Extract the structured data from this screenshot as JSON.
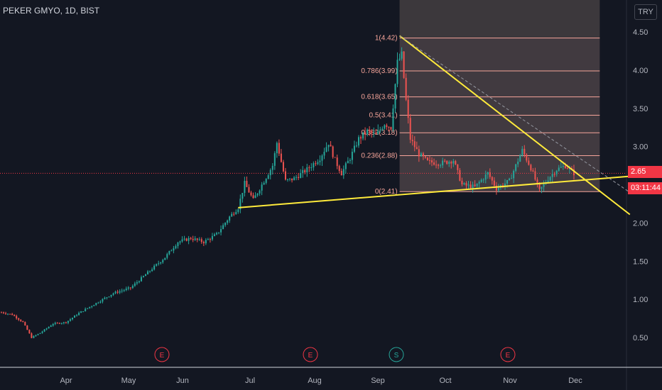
{
  "header": {
    "symbol_title": "PEKER GMYO, 1D, BIST",
    "currency": "TRY"
  },
  "price_badge": {
    "last_price": "2.65",
    "countdown": "03:11:44"
  },
  "colors": {
    "background": "#131722",
    "up_candle": "#26a69a",
    "down_candle": "#ef5350",
    "trendline": "#ffeb3b",
    "fib_line": "#f7a59a",
    "fib_box": "#4a4145",
    "axis_text": "#b2b5be",
    "event_marker": "#f23645",
    "split_marker": "#26a69a"
  },
  "chart_data": {
    "type": "candlestick",
    "y_axis": {
      "ticks": [
        "0.50",
        "1.00",
        "1.50",
        "2.00",
        "2.50",
        "3.00",
        "3.50",
        "4.00",
        "4.50"
      ],
      "range": [
        0.25,
        4.75
      ]
    },
    "x_axis": {
      "ticks": [
        "Apr",
        "May",
        "Jun",
        "Jul",
        "Aug",
        "Sep",
        "Oct",
        "Nov",
        "Dec"
      ]
    },
    "price_path": [
      {
        "day": 0,
        "price": 0.83
      },
      {
        "day": 5,
        "price": 0.8
      },
      {
        "day": 10,
        "price": 0.7
      },
      {
        "day": 14,
        "price": 0.5
      },
      {
        "day": 18,
        "price": 0.56
      },
      {
        "day": 24,
        "price": 0.68
      },
      {
        "day": 30,
        "price": 0.7
      },
      {
        "day": 36,
        "price": 0.82
      },
      {
        "day": 44,
        "price": 0.95
      },
      {
        "day": 52,
        "price": 1.08
      },
      {
        "day": 60,
        "price": 1.15
      },
      {
        "day": 68,
        "price": 1.35
      },
      {
        "day": 76,
        "price": 1.55
      },
      {
        "day": 82,
        "price": 1.75
      },
      {
        "day": 88,
        "price": 1.8
      },
      {
        "day": 94,
        "price": 1.75
      },
      {
        "day": 100,
        "price": 1.85
      },
      {
        "day": 106,
        "price": 2.08
      },
      {
        "day": 110,
        "price": 2.2
      },
      {
        "day": 113,
        "price": 2.52
      },
      {
        "day": 117,
        "price": 2.3
      },
      {
        "day": 122,
        "price": 2.55
      },
      {
        "day": 126,
        "price": 2.75
      },
      {
        "day": 128,
        "price": 3.05
      },
      {
        "day": 132,
        "price": 2.55
      },
      {
        "day": 136,
        "price": 2.58
      },
      {
        "day": 142,
        "price": 2.7
      },
      {
        "day": 148,
        "price": 2.85
      },
      {
        "day": 152,
        "price": 3.05
      },
      {
        "day": 155,
        "price": 2.82
      },
      {
        "day": 158,
        "price": 2.65
      },
      {
        "day": 162,
        "price": 2.85
      },
      {
        "day": 166,
        "price": 3.1
      },
      {
        "day": 170,
        "price": 3.2
      },
      {
        "day": 174,
        "price": 3.15
      },
      {
        "day": 178,
        "price": 3.3
      },
      {
        "day": 181,
        "price": 3.25
      },
      {
        "day": 184,
        "price": 4.1
      },
      {
        "day": 186,
        "price": 4.2
      },
      {
        "day": 188,
        "price": 3.6
      },
      {
        "day": 190,
        "price": 3.1
      },
      {
        "day": 194,
        "price": 2.9
      },
      {
        "day": 198,
        "price": 2.8
      },
      {
        "day": 204,
        "price": 2.78
      },
      {
        "day": 210,
        "price": 2.82
      },
      {
        "day": 214,
        "price": 2.5
      },
      {
        "day": 220,
        "price": 2.47
      },
      {
        "day": 226,
        "price": 2.65
      },
      {
        "day": 230,
        "price": 2.45
      },
      {
        "day": 236,
        "price": 2.55
      },
      {
        "day": 242,
        "price": 2.95
      },
      {
        "day": 246,
        "price": 2.72
      },
      {
        "day": 250,
        "price": 2.42
      },
      {
        "day": 254,
        "price": 2.58
      },
      {
        "day": 258,
        "price": 2.7
      },
      {
        "day": 262,
        "price": 2.75
      },
      {
        "day": 266,
        "price": 2.65
      }
    ],
    "fibonacci": {
      "levels": [
        {
          "label": "1(4.42)",
          "price": 4.42
        },
        {
          "label": "0.786(3.99)",
          "price": 3.99
        },
        {
          "label": "0.618(3.65)",
          "price": 3.65
        },
        {
          "label": "0.5(3.41)",
          "price": 3.41
        },
        {
          "label": "0.382(3.18)",
          "price": 3.18
        },
        {
          "label": "0.236(2.88)",
          "price": 2.88
        },
        {
          "label": "0(2.41)",
          "price": 2.41
        }
      ]
    },
    "trendlines": [
      {
        "name": "support",
        "from": {
          "day": 110,
          "price": 2.2
        },
        "to": {
          "day": 292,
          "price": 2.61
        }
      },
      {
        "name": "resistance",
        "from": {
          "day": 185,
          "price": 4.45
        },
        "to": {
          "day": 292,
          "price": 2.11
        }
      },
      {
        "name": "projection",
        "from": {
          "day": 185,
          "price": 4.45
        },
        "to": {
          "day": 292,
          "price": 2.4
        }
      }
    ],
    "events": [
      {
        "label": "E",
        "type": "earnings",
        "near": "Jun"
      },
      {
        "label": "E",
        "type": "earnings",
        "near": "Aug"
      },
      {
        "label": "S",
        "type": "split",
        "near": "Sep"
      },
      {
        "label": "E",
        "type": "earnings",
        "near": "Nov"
      }
    ],
    "last_price_line": 2.65
  }
}
